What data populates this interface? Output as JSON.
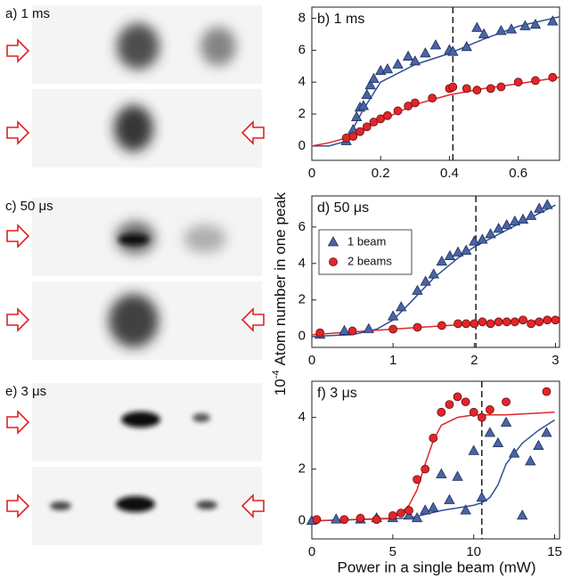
{
  "image_panels": [
    {
      "label": "a) 1 ms"
    },
    {
      "label": "c) 50 μs"
    },
    {
      "label": "e) 3 μs"
    }
  ],
  "ylabel_base": "10",
  "ylabel_exponent": "-4",
  "ylabel": "Atom number in one peak",
  "xlabel": "Power in a single beam (mW)",
  "chart_data": [
    {
      "type": "scatter",
      "title": "b) 1 ms",
      "xlim": [
        0,
        0.72
      ],
      "ylim": [
        -0.9,
        8.7
      ],
      "xticks": [
        0,
        0.2,
        0.4,
        0.6
      ],
      "yticks": [
        0,
        2,
        4,
        6,
        8
      ],
      "vline": 0.41,
      "legend": false,
      "series": [
        {
          "name": "1 beam",
          "color": "#4a64a4",
          "marker": "triangle",
          "x": [
            0.1,
            0.12,
            0.13,
            0.14,
            0.15,
            0.16,
            0.17,
            0.18,
            0.2,
            0.22,
            0.25,
            0.28,
            0.3,
            0.33,
            0.36,
            0.4,
            0.41,
            0.45,
            0.48,
            0.5,
            0.55,
            0.58,
            0.62,
            0.65,
            0.7
          ],
          "values": [
            0.3,
            1.0,
            1.8,
            2.4,
            2.5,
            3.2,
            3.8,
            4.2,
            4.7,
            4.8,
            5.1,
            5.6,
            5.3,
            5.8,
            6.3,
            6.0,
            5.9,
            6.2,
            7.4,
            7.0,
            7.2,
            7.3,
            7.5,
            7.6,
            7.8
          ]
        },
        {
          "name": "2 beams",
          "color": "#e0262b",
          "marker": "circle",
          "x": [
            0.1,
            0.12,
            0.14,
            0.16,
            0.18,
            0.2,
            0.22,
            0.25,
            0.28,
            0.3,
            0.35,
            0.4,
            0.41,
            0.45,
            0.48,
            0.52,
            0.55,
            0.6,
            0.65,
            0.7
          ],
          "values": [
            0.5,
            0.6,
            0.9,
            1.2,
            1.5,
            1.7,
            1.9,
            2.2,
            2.5,
            2.7,
            3.0,
            3.6,
            3.7,
            3.6,
            3.5,
            3.6,
            3.7,
            4.0,
            4.1,
            4.3
          ]
        }
      ],
      "fits": [
        {
          "color": "#2f4f96",
          "x": [
            0,
            0.05,
            0.1,
            0.15,
            0.2,
            0.3,
            0.4,
            0.5,
            0.6,
            0.72
          ],
          "values": [
            0,
            0,
            0.3,
            2.3,
            4.0,
            5.1,
            5.8,
            6.7,
            7.5,
            8.1
          ]
        },
        {
          "color": "#e0262b",
          "x": [
            0,
            0.05,
            0.1,
            0.2,
            0.3,
            0.4,
            0.5,
            0.6,
            0.72
          ],
          "values": [
            0,
            0.2,
            0.5,
            1.6,
            2.6,
            3.2,
            3.6,
            3.9,
            4.3
          ]
        }
      ]
    },
    {
      "type": "scatter",
      "title": "d) 50 μs",
      "xlim": [
        0,
        3.05
      ],
      "ylim": [
        -0.6,
        7.7
      ],
      "xticks": [
        0,
        1,
        2,
        3
      ],
      "yticks": [
        0,
        2,
        4,
        6
      ],
      "vline": 2.02,
      "legend": true,
      "series": [
        {
          "name": "1 beam",
          "color": "#4a64a4",
          "marker": "triangle",
          "x": [
            0.1,
            0.4,
            0.7,
            1.0,
            1.1,
            1.3,
            1.4,
            1.5,
            1.6,
            1.7,
            1.8,
            1.9,
            2.0,
            2.1,
            2.2,
            2.3,
            2.4,
            2.5,
            2.6,
            2.7,
            2.8,
            2.9
          ],
          "values": [
            0.1,
            0.3,
            0.4,
            1.1,
            1.6,
            2.5,
            3.0,
            3.4,
            4.1,
            4.4,
            4.6,
            4.7,
            5.2,
            5.3,
            5.6,
            5.9,
            6.1,
            6.3,
            6.4,
            6.6,
            7.0,
            7.2
          ]
        },
        {
          "name": "2 beams",
          "color": "#e0262b",
          "marker": "circle",
          "x": [
            0.1,
            0.5,
            1.0,
            1.3,
            1.6,
            1.8,
            1.9,
            2.0,
            2.1,
            2.2,
            2.3,
            2.4,
            2.5,
            2.6,
            2.7,
            2.8,
            2.9,
            3.0
          ],
          "values": [
            0.2,
            0.3,
            0.4,
            0.5,
            0.6,
            0.7,
            0.7,
            0.7,
            0.8,
            0.7,
            0.8,
            0.8,
            0.8,
            0.9,
            0.7,
            0.8,
            0.9,
            0.9
          ]
        }
      ],
      "fits": [
        {
          "color": "#2f4f96",
          "x": [
            0,
            0.5,
            0.8,
            1,
            1.2,
            1.5,
            1.8,
            2,
            2.3,
            2.6,
            3
          ],
          "values": [
            0,
            0.1,
            0.4,
            0.9,
            1.8,
            3.2,
            4.3,
            4.9,
            5.6,
            6.3,
            7.2
          ]
        },
        {
          "color": "#e0262b",
          "x": [
            0,
            1,
            2,
            3
          ],
          "values": [
            0.1,
            0.4,
            0.7,
            0.9
          ]
        }
      ]
    },
    {
      "type": "scatter",
      "title": "f) 3 μs",
      "xlim": [
        0,
        15.3
      ],
      "ylim": [
        -0.7,
        5.4
      ],
      "xticks": [
        0,
        5,
        10,
        15
      ],
      "yticks": [
        0,
        2,
        4
      ],
      "vline": 10.5,
      "legend": false,
      "series": [
        {
          "name": "1 beam",
          "color": "#4a64a4",
          "marker": "triangle",
          "x": [
            0,
            1.5,
            3,
            4,
            5,
            6,
            6.5,
            7,
            7.5,
            8,
            8.5,
            9,
            9.5,
            10,
            10.5,
            11,
            11.5,
            12,
            12.5,
            13,
            13.5,
            14,
            14.5
          ],
          "values": [
            0,
            0.05,
            0.05,
            0.1,
            0.1,
            0.2,
            0.1,
            0.4,
            0.5,
            1.8,
            0.8,
            1.7,
            0.4,
            2.7,
            0.9,
            3.4,
            3.0,
            3.8,
            2.6,
            0.2,
            2.3,
            2.9,
            3.4
          ]
        },
        {
          "name": "2 beams",
          "color": "#e0262b",
          "marker": "circle",
          "x": [
            0.3,
            2,
            3,
            4,
            5,
            5.5,
            6,
            6.5,
            7,
            7.5,
            8,
            8.5,
            9,
            9.5,
            10,
            10.5,
            11,
            12,
            14.5
          ],
          "values": [
            0.05,
            0.05,
            0.1,
            0.05,
            0.2,
            0.3,
            0.4,
            1.6,
            2.0,
            3.2,
            4.2,
            4.5,
            4.8,
            4.6,
            4.2,
            4.0,
            4.3,
            4.6,
            5.0
          ]
        }
      ],
      "fits": [
        {
          "color": "#2f4f96",
          "x": [
            0,
            6,
            8,
            10,
            10.5,
            11,
            11.5,
            12,
            13,
            14,
            15
          ],
          "values": [
            0,
            0.1,
            0.4,
            0.6,
            0.7,
            0.9,
            1.4,
            2.2,
            3.0,
            3.5,
            3.9
          ]
        },
        {
          "color": "#e0262b",
          "x": [
            0,
            5,
            5.5,
            6,
            6.5,
            7,
            7.5,
            8,
            9,
            10,
            12,
            15
          ],
          "values": [
            0,
            0.1,
            0.3,
            0.6,
            1.2,
            2.2,
            3.1,
            3.7,
            4.0,
            4.1,
            4.1,
            4.2
          ]
        }
      ]
    }
  ]
}
